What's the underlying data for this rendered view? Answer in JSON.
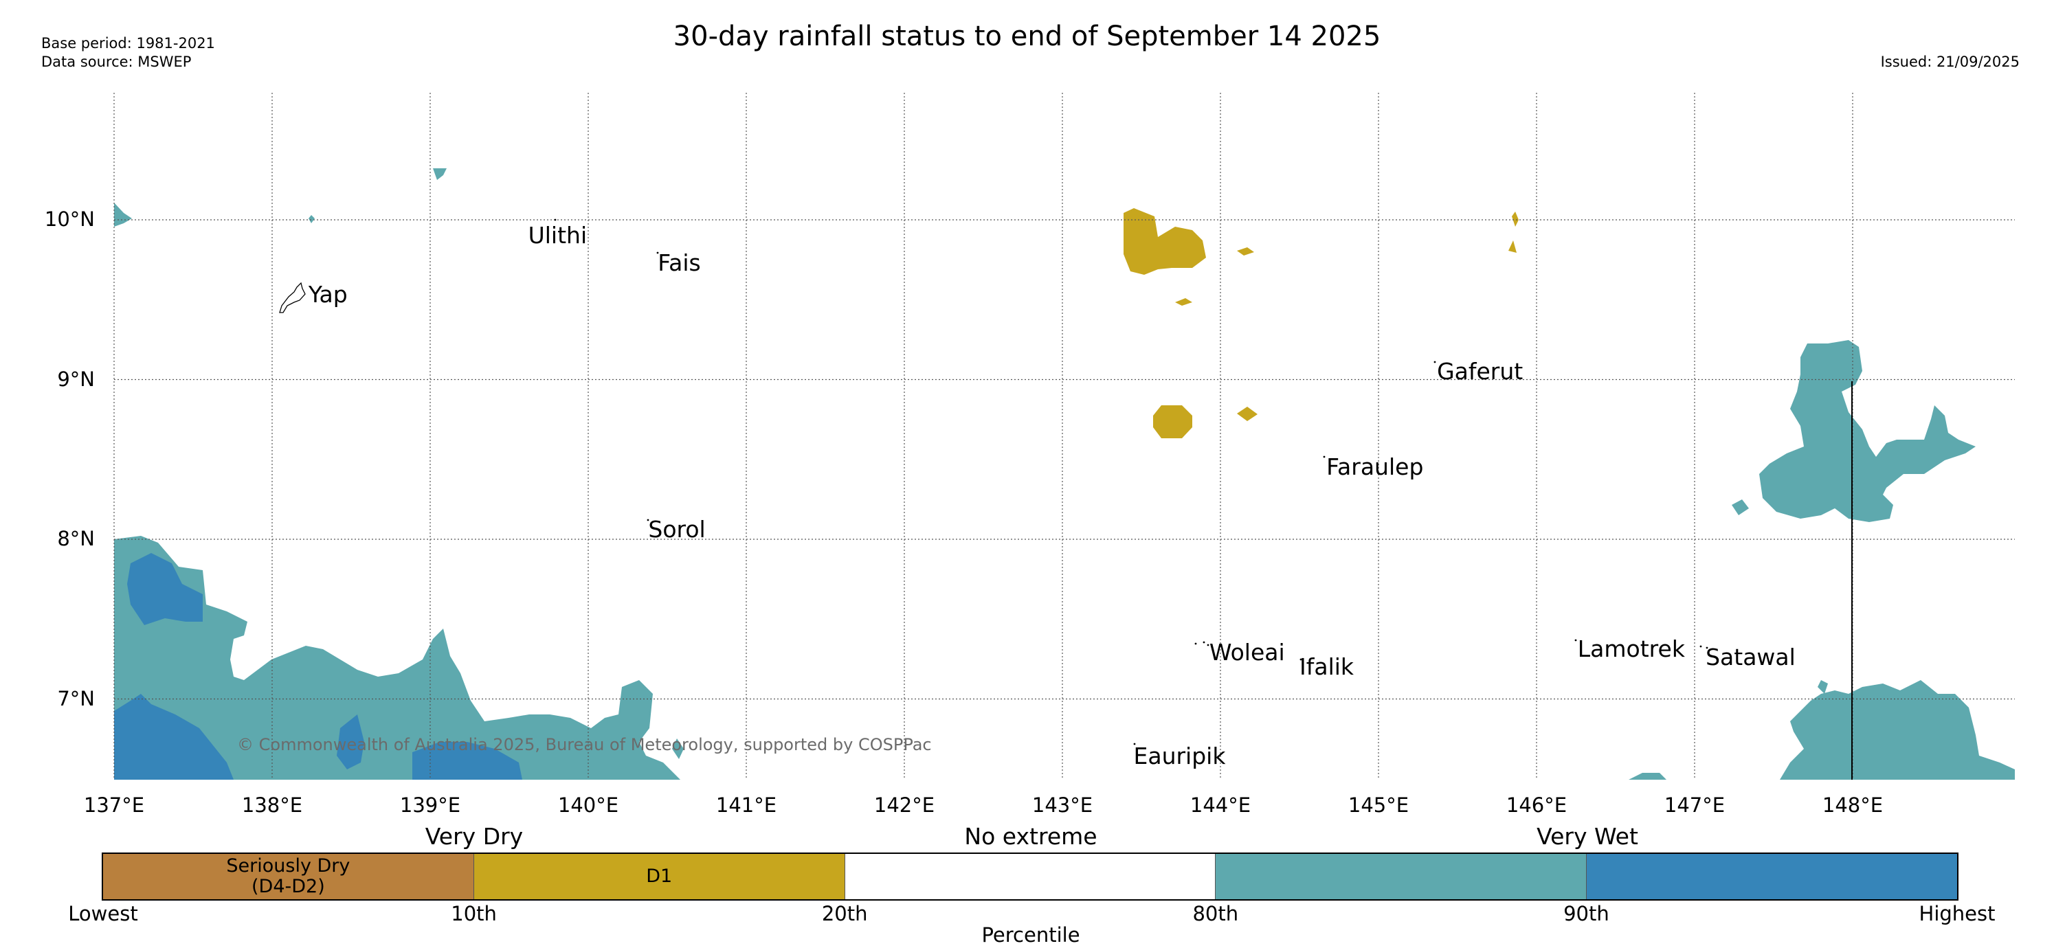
{
  "header": {
    "title": "30-day rainfall status to end of September 14 2025",
    "base_period": "Base period: 1981-2021",
    "data_source": "Data source: MSWEP",
    "issued": "Issued: 21/09/2025"
  },
  "map": {
    "lon_range": [
      137.0,
      149.0
    ],
    "lat_range": [
      6.5,
      10.8
    ],
    "lon_ticks": [
      "137°E",
      "138°E",
      "139°E",
      "140°E",
      "141°E",
      "142°E",
      "143°E",
      "144°E",
      "145°E",
      "146°E",
      "147°E",
      "148°E"
    ],
    "lat_ticks": [
      "10°N",
      "9°N",
      "8°N",
      "7°N"
    ],
    "gridlines": true,
    "places": [
      {
        "name": "Ulithi",
        "lon": 139.62,
        "lat": 9.9
      },
      {
        "name": "Fais",
        "lon": 140.44,
        "lat": 9.73
      },
      {
        "name": "Yap",
        "lon": 138.23,
        "lat": 9.53
      },
      {
        "name": "Gaferut",
        "lon": 145.37,
        "lat": 9.05
      },
      {
        "name": "Faraulep",
        "lon": 144.67,
        "lat": 8.45
      },
      {
        "name": "Sorol",
        "lon": 140.38,
        "lat": 8.06
      },
      {
        "name": "Woleai",
        "lon": 143.93,
        "lat": 7.29
      },
      {
        "name": "Ifalik",
        "lon": 144.5,
        "lat": 7.2
      },
      {
        "name": "Lamotrek",
        "lon": 146.26,
        "lat": 7.31
      },
      {
        "name": "Satawal",
        "lon": 147.07,
        "lat": 7.26
      },
      {
        "name": "Eauripik",
        "lon": 143.45,
        "lat": 6.64
      }
    ],
    "copyright": "© Commonwealth of Australia 2025, Bureau of Meteorology, supported by COSPPac"
  },
  "legend": {
    "title": "Percentile",
    "categories": [
      {
        "label": "Seriously Dry\n(D4-D2)",
        "color": "#b9803d",
        "from": "Lowest",
        "to": "10th"
      },
      {
        "label": "D1",
        "color": "#c7a61e",
        "from": "10th",
        "to": "20th"
      },
      {
        "label": "",
        "color": "#ffffff",
        "from": "20th",
        "to": "80th"
      },
      {
        "label": "",
        "color": "#5ea9ae",
        "from": "80th",
        "to": "90th"
      },
      {
        "label": "",
        "color": "#3685b9",
        "from": "90th",
        "to": "Highest"
      }
    ],
    "group_headers": [
      "Very Dry",
      "No extreme",
      "Very Wet"
    ],
    "ticks": [
      "Lowest",
      "10th",
      "20th",
      "80th",
      "90th",
      "Highest"
    ]
  }
}
